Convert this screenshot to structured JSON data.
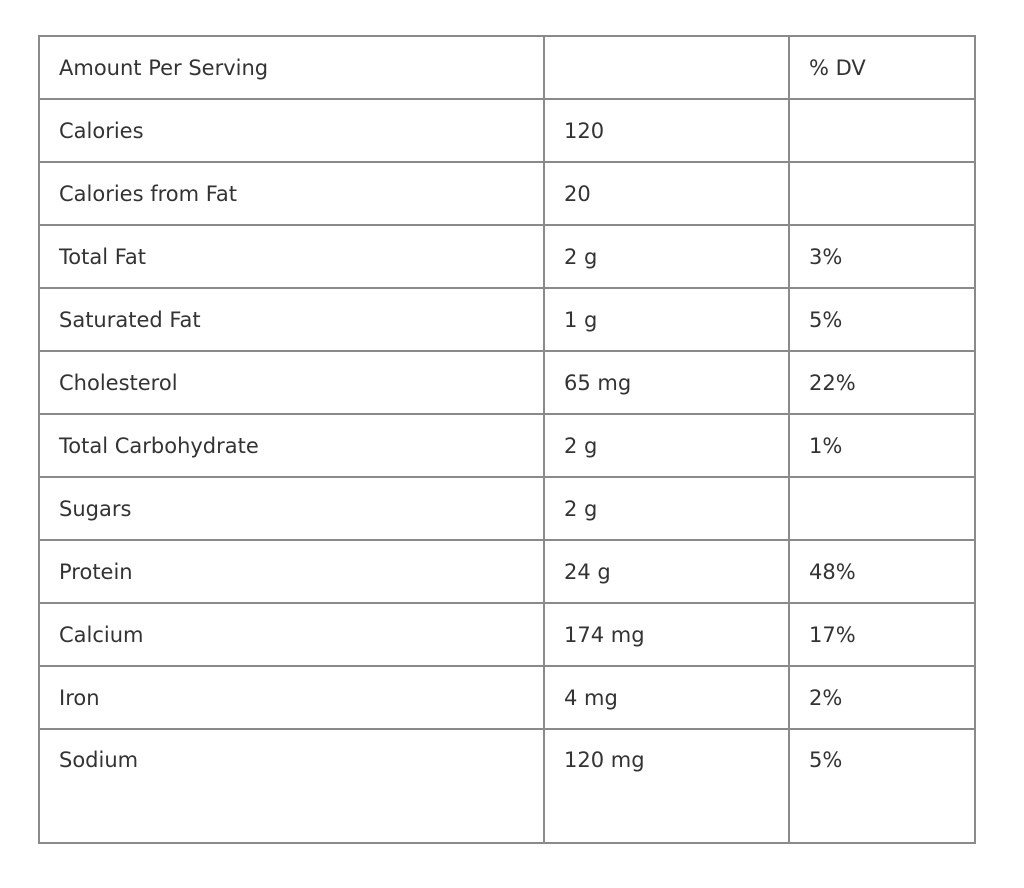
{
  "table": {
    "header": [
      "Amount Per Serving",
      "",
      "% DV"
    ],
    "rows": [
      [
        "Calories",
        "120",
        ""
      ],
      [
        "Calories from Fat",
        "20",
        ""
      ],
      [
        "Total Fat",
        "2 g",
        "3%"
      ],
      [
        "Saturated Fat",
        "1 g",
        "5%"
      ],
      [
        "Cholesterol",
        "65 mg",
        "22%"
      ],
      [
        "Total Carbohydrate",
        "2 g",
        "1%"
      ],
      [
        "Sugars",
        "2 g",
        ""
      ],
      [
        "Protein",
        "24 g",
        "48%"
      ],
      [
        "Calcium",
        "174 mg",
        "17%"
      ],
      [
        "Iron",
        "4 mg",
        "2%"
      ],
      [
        "Sodium",
        "120 mg",
        "5%"
      ]
    ]
  }
}
